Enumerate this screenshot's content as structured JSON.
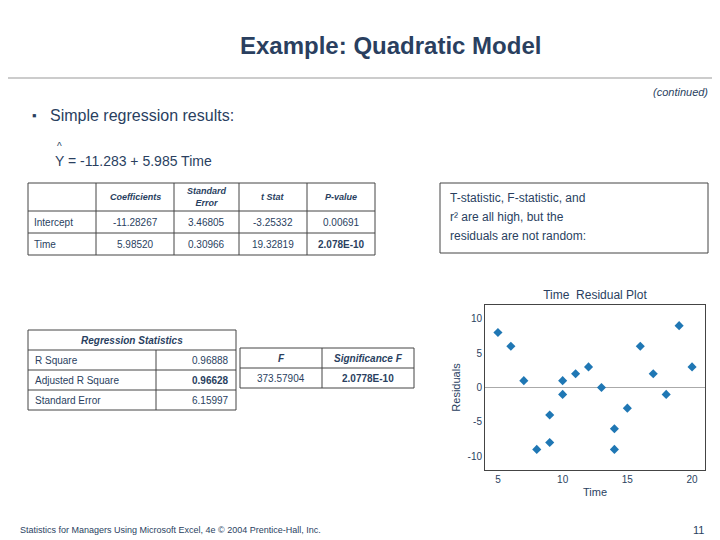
{
  "chart_data": {
    "type": "scatter",
    "title": "Time  Residual Plot",
    "xlabel": "Time",
    "ylabel": "Residuals",
    "x": [
      5,
      6,
      7,
      8,
      9,
      9,
      10,
      10,
      11,
      12,
      13,
      14,
      14,
      15,
      16,
      17,
      18,
      19,
      20
    ],
    "values": [
      8,
      6,
      1,
      -9,
      -8,
      -4,
      -1,
      1,
      2,
      3,
      0,
      -6,
      -9,
      -3,
      6,
      2,
      -1,
      9,
      3
    ],
    "xlim": [
      4,
      21
    ],
    "ylim": [
      -12,
      12
    ],
    "xticks": [
      5,
      10,
      15,
      20
    ],
    "yticks": [
      -10,
      -5,
      0,
      5,
      10
    ],
    "grid": false,
    "marker": "diamond",
    "annotations": [
      "Example: Quadratic Model",
      "(continued)",
      "▪",
      "Simple regression results:",
      "^",
      "Y = -11.283 + 5.985 Time",
      [
        "Coefficients",
        "Standard\nError",
        "t Stat",
        "P-value"
      ],
      [
        "Intercept",
        "-11.28267",
        "3.46805",
        "-3.25332",
        "0.00691"
      ],
      [
        "Time",
        "5.98520",
        "0.30966",
        "19.32819",
        "2.078E-10"
      ],
      [
        "Regression Statistics"
      ],
      [
        "R Square",
        "0.96888"
      ],
      [
        "Adjusted R Square",
        "0.96628"
      ],
      [
        "Standard Error",
        "6.15997"
      ],
      [
        "F",
        "Significance F"
      ],
      [
        "373.57904",
        "2.0778E-10"
      ],
      "T-statistic, F-statistic, and",
      "r² are all high, but the",
      "residuals are not random:",
      "Statistics for Managers Using Microsoft Excel, 4e © 2004 Prentice-Hall, Inc.",
      "11"
    ]
  }
}
